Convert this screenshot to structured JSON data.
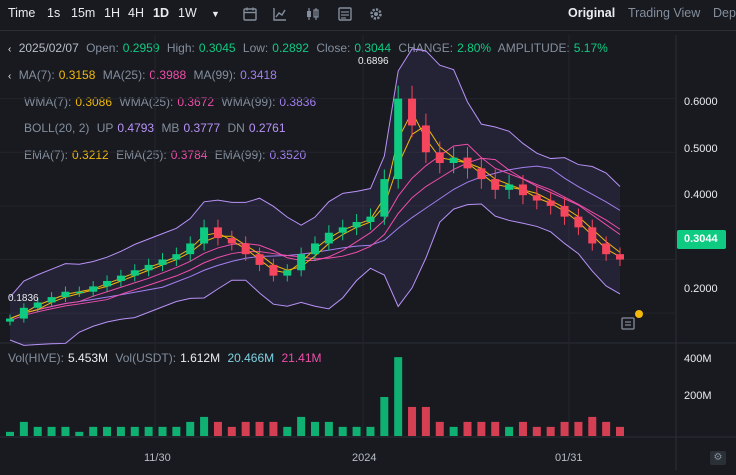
{
  "toolbar": {
    "time": "Time",
    "intervals": [
      "1s",
      "15m",
      "1H",
      "4H",
      "1D",
      "1W"
    ],
    "active_interval": "1D",
    "views": [
      "Original",
      "Trading View",
      "Dep"
    ],
    "active_view": "Original"
  },
  "ohlc": {
    "date": "2025/02/07",
    "open_label": "Open:",
    "open": "0.2959",
    "high_label": "High:",
    "high": "0.3045",
    "low_label": "Low:",
    "low": "0.2892",
    "close_label": "Close:",
    "close": "0.3044",
    "change_label": "CHANGE:",
    "change": "2.80%",
    "amp_label": "AMPLITUDE:",
    "amp": "5.17%"
  },
  "ma": {
    "ma7_label": "MA(7):",
    "ma7": "0.3158",
    "ma25_label": "MA(25):",
    "ma25": "0.3988",
    "ma99_label": "MA(99):",
    "ma99": "0.3418"
  },
  "wma": {
    "w7_label": "WMA(7):",
    "w7": "0.3086",
    "w25_label": "WMA(25):",
    "w25": "0.3672",
    "w99_label": "WMA(99):",
    "w99": "0.3836"
  },
  "boll": {
    "label": "BOLL(20, 2)",
    "up_label": "UP",
    "up": "0.4793",
    "mb_label": "MB",
    "mb": "0.3777",
    "dn_label": "DN",
    "dn": "0.2761"
  },
  "ema": {
    "e7_label": "EMA(7):",
    "e7": "0.3212",
    "e25_label": "EMA(25):",
    "e25": "0.3784",
    "e99_label": "EMA(99):",
    "e99": "0.3520"
  },
  "price_axis": [
    "0.6000",
    "0.5000",
    "0.4000",
    "0.2000"
  ],
  "current_price": "0.3044",
  "high_marker": "0.6896",
  "low_marker": "0.1836",
  "volume": {
    "label": "Vol(HIVE):",
    "vol_hive": "5.453M",
    "usdt_label": "Vol(USDT):",
    "vol_usdt": "1.612M",
    "v1": "20.466M",
    "v2": "21.41M",
    "axis": [
      "400M",
      "200M"
    ]
  },
  "date_axis": [
    "11/30",
    "2024",
    "01/31"
  ],
  "colors": {
    "up": "#0ecb81",
    "down": "#f6465d",
    "ma7": "#f0b90b",
    "ma25": "#ee4ea9",
    "ma99": "#a37ff0",
    "boll": "#b992f7",
    "accent": "#eaecef"
  },
  "chart_data": {
    "type": "candlestick",
    "close_series": [
      0.19,
      0.21,
      0.22,
      0.23,
      0.24,
      0.24,
      0.25,
      0.26,
      0.27,
      0.28,
      0.29,
      0.3,
      0.31,
      0.33,
      0.36,
      0.34,
      0.33,
      0.31,
      0.29,
      0.27,
      0.28,
      0.31,
      0.33,
      0.35,
      0.36,
      0.37,
      0.38,
      0.45,
      0.6,
      0.55,
      0.5,
      0.48,
      0.49,
      0.47,
      0.45,
      0.43,
      0.44,
      0.42,
      0.41,
      0.4,
      0.38,
      0.36,
      0.33,
      0.31,
      0.3
    ],
    "ylim": [
      0.15,
      0.7
    ]
  }
}
